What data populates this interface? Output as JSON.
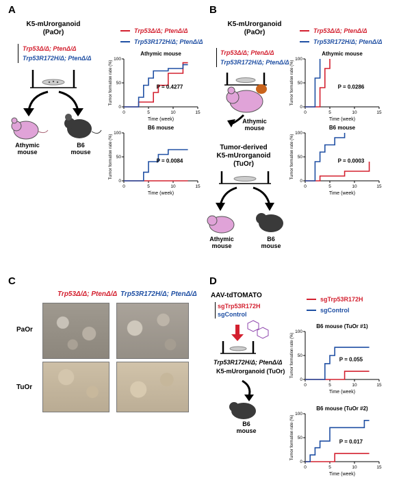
{
  "panels": {
    "A": {
      "label": "A",
      "title_line1": "K5-mUrorganoid",
      "title_line2": "(PaOr)",
      "geno_red": "Trp53Δ/Δ; PtenΔ/Δ",
      "geno_blue": "Trp53R172H/Δ; PtenΔ/Δ",
      "mouse_left": "Athymic",
      "mouse_left2": "mouse",
      "mouse_right": "B6",
      "mouse_right2": "mouse"
    },
    "B": {
      "label": "B",
      "title_line1": "K5-mUrorganoid",
      "title_line2": "(PaOr)",
      "geno_red": "Trp53Δ/Δ; PtenΔ/Δ",
      "geno_blue": "Trp53R172H/Δ; PtenΔ/Δ",
      "mouse_mid": "Athymic",
      "mouse_mid2": "mouse",
      "tuor_line1": "Tumor-derived",
      "tuor_line2": "K5-mUrorganoid",
      "tuor_line3": "(TuOr)",
      "mouse_left": "Athymic",
      "mouse_left2": "mouse",
      "mouse_right": "B6",
      "mouse_right2": "mouse"
    },
    "C": {
      "label": "C",
      "col_red": "Trp53Δ/Δ; PtenΔ/Δ",
      "col_blue": "Trp53R172H/Δ; PtenΔ/Δ",
      "row1": "PaOr",
      "row2": "TuOr"
    },
    "D": {
      "label": "D",
      "aav": "AAV-tdTOMATO",
      "sg_red": "sgTrp53R172H",
      "sg_blue": "sgControl",
      "geno": "Trp53R172H/Δ; PtenΔ/Δ",
      "organoid": "K5-mUrorganoid (TuOr)",
      "mouse": "B6",
      "mouse2": "mouse"
    }
  },
  "legends": {
    "AB": {
      "red": "Trp53Δ/Δ; PtenΔ/Δ",
      "blue": "Trp53R172H/Δ; PtenΔ/Δ"
    },
    "D": {
      "red": "sgTrp53R172H",
      "blue": "sgControl"
    }
  },
  "colors": {
    "red": "#d3202f",
    "blue": "#1f4fa3"
  },
  "chart_data": [
    {
      "id": "A-athymic",
      "type": "line",
      "title": "Athymic mouse",
      "xlabel": "Time (week)",
      "ylabel": "Tumor formation rate (%)",
      "xlim": [
        0,
        15
      ],
      "ylim": [
        0,
        100
      ],
      "xticks": [
        0,
        5,
        10,
        15
      ],
      "yticks": [
        0,
        50,
        100
      ],
      "annotation": "P = 0.4277",
      "series": [
        {
          "name": "Trp53Δ/Δ; PtenΔ/Δ",
          "color": "red",
          "x": [
            0,
            3,
            3,
            6,
            6,
            7,
            7,
            9,
            9,
            12,
            12,
            13
          ],
          "y": [
            0,
            0,
            10,
            10,
            30,
            30,
            45,
            45,
            70,
            70,
            92,
            92
          ]
        },
        {
          "name": "Trp53R172H/Δ; PtenΔ/Δ",
          "color": "blue",
          "x": [
            0,
            3,
            3,
            4,
            4,
            5,
            5,
            6,
            6,
            9,
            9,
            12,
            12,
            13
          ],
          "y": [
            0,
            0,
            20,
            20,
            45,
            45,
            60,
            60,
            75,
            75,
            80,
            80,
            88,
            88
          ]
        }
      ]
    },
    {
      "id": "A-b6",
      "type": "line",
      "title": "B6 mouse",
      "xlabel": "Time (week)",
      "ylabel": "Tumor formation rate (%)",
      "xlim": [
        0,
        15
      ],
      "ylim": [
        0,
        100
      ],
      "xticks": [
        0,
        5,
        10,
        15
      ],
      "yticks": [
        0,
        50,
        100
      ],
      "annotation": "P = 0.0084",
      "series": [
        {
          "name": "Trp53Δ/Δ; PtenΔ/Δ",
          "color": "red",
          "x": [
            0,
            13
          ],
          "y": [
            0,
            0
          ]
        },
        {
          "name": "Trp53R172H/Δ; PtenΔ/Δ",
          "color": "blue",
          "x": [
            0,
            4,
            4,
            5,
            5,
            7,
            7,
            9,
            9,
            13
          ],
          "y": [
            0,
            0,
            18,
            18,
            40,
            40,
            55,
            55,
            65,
            65
          ]
        }
      ]
    },
    {
      "id": "B-athymic",
      "type": "line",
      "title": "Athymic mouse",
      "xlabel": "Time (week)",
      "ylabel": "Tumor formation rate (%)",
      "xlim": [
        0,
        15
      ],
      "ylim": [
        0,
        100
      ],
      "xticks": [
        0,
        5,
        10,
        15
      ],
      "yticks": [
        0,
        50,
        100
      ],
      "annotation": "P = 0.0286",
      "series": [
        {
          "name": "Trp53Δ/Δ; PtenΔ/Δ",
          "color": "red",
          "x": [
            0,
            3,
            3,
            4,
            4,
            5,
            5
          ],
          "y": [
            0,
            0,
            40,
            40,
            80,
            80,
            100
          ]
        },
        {
          "name": "Trp53R172H/Δ; PtenΔ/Δ",
          "color": "blue",
          "x": [
            0,
            2,
            2,
            3,
            3
          ],
          "y": [
            0,
            0,
            60,
            60,
            100
          ]
        }
      ]
    },
    {
      "id": "B-b6",
      "type": "line",
      "title": "B6 mouse",
      "xlabel": "Time (week)",
      "ylabel": "Tumor formation rate (%)",
      "xlim": [
        0,
        15
      ],
      "ylim": [
        0,
        100
      ],
      "xticks": [
        0,
        5,
        10,
        15
      ],
      "yticks": [
        0,
        50,
        100
      ],
      "annotation": "P = 0.0003",
      "series": [
        {
          "name": "Trp53Δ/Δ; PtenΔ/Δ",
          "color": "red",
          "x": [
            0,
            3,
            3,
            8,
            8,
            13,
            13
          ],
          "y": [
            0,
            0,
            10,
            10,
            20,
            20,
            40
          ]
        },
        {
          "name": "Trp53R172H/Δ; PtenΔ/Δ",
          "color": "blue",
          "x": [
            0,
            2,
            2,
            3,
            3,
            4,
            4,
            6,
            6,
            8,
            8
          ],
          "y": [
            0,
            0,
            40,
            40,
            60,
            60,
            75,
            75,
            90,
            90,
            100
          ]
        }
      ]
    },
    {
      "id": "D-tuor1",
      "type": "line",
      "title": "B6 mouse (TuOr #1)",
      "xlabel": "Time (week)",
      "ylabel": "Tumor formation rate (%)",
      "xlim": [
        0,
        15
      ],
      "ylim": [
        0,
        100
      ],
      "xticks": [
        0,
        5,
        10,
        15
      ],
      "yticks": [
        0,
        50,
        100
      ],
      "annotation": "P = 0.055",
      "series": [
        {
          "name": "sgTrp53R172H",
          "color": "red",
          "x": [
            0,
            8,
            8,
            13
          ],
          "y": [
            0,
            0,
            17,
            17
          ]
        },
        {
          "name": "sgControl",
          "color": "blue",
          "x": [
            0,
            4,
            4,
            5,
            5,
            6,
            6,
            13
          ],
          "y": [
            0,
            0,
            33,
            33,
            50,
            50,
            67,
            67
          ]
        }
      ]
    },
    {
      "id": "D-tuor2",
      "type": "line",
      "title": "B6 mouse (TuOr #2)",
      "xlabel": "Time (week)",
      "ylabel": "Tumor formation rate (%)",
      "xlim": [
        0,
        15
      ],
      "ylim": [
        0,
        100
      ],
      "xticks": [
        0,
        5,
        10,
        15
      ],
      "yticks": [
        0,
        50,
        100
      ],
      "annotation": "P = 0.017",
      "series": [
        {
          "name": "sgTrp53R172H",
          "color": "red",
          "x": [
            0,
            6,
            6,
            13
          ],
          "y": [
            0,
            0,
            17,
            17
          ]
        },
        {
          "name": "sgControl",
          "color": "blue",
          "x": [
            0,
            1,
            1,
            2,
            2,
            3,
            3,
            5,
            5,
            12,
            12,
            13
          ],
          "y": [
            0,
            0,
            14,
            14,
            29,
            29,
            43,
            43,
            71,
            71,
            86,
            86
          ]
        }
      ]
    }
  ]
}
